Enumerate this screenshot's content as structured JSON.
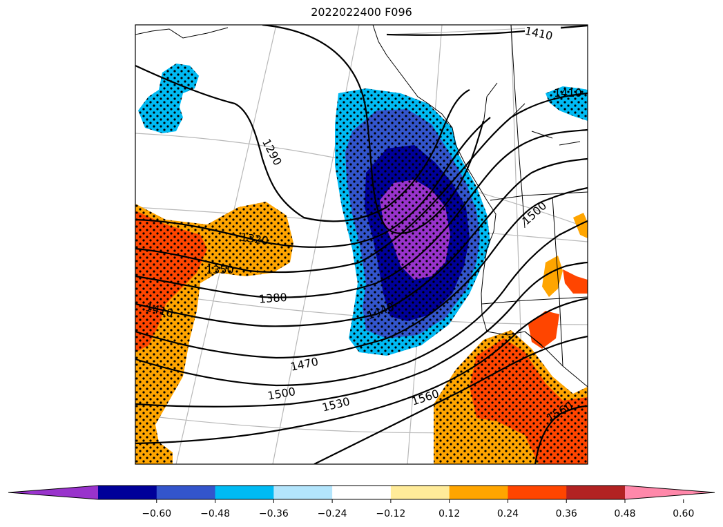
{
  "title": "2022022400 F096",
  "contour_labels": [
    "1410",
    "1410",
    "1290",
    "1500",
    "1320",
    "1350",
    "1380",
    "1440",
    "1410",
    "1470",
    "1500",
    "1530",
    "1560",
    "1560"
  ],
  "colorbar": {
    "colors": [
      "#9933cc",
      "#000099",
      "#3355cc",
      "#00bbf4",
      "#b3e5fc",
      "#ffffff",
      "#ffeb99",
      "#ffa500",
      "#ff4500",
      "#b22222",
      "#ff88aa"
    ],
    "ticks": [
      "−0.60",
      "−0.48",
      "−0.36",
      "−0.24",
      "−0.12",
      "0.12",
      "0.24",
      "0.36",
      "0.48",
      "0.60"
    ]
  }
}
